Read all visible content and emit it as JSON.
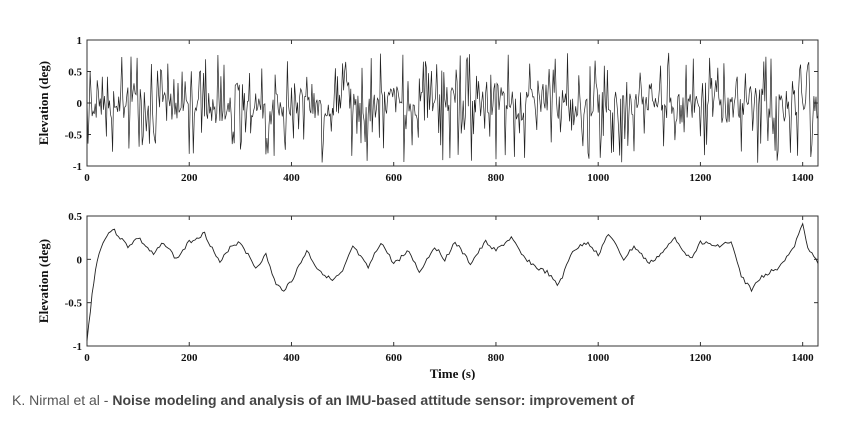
{
  "caption": {
    "authors": "K. Nirmal et al - ",
    "title": "Noise modeling and analysis of an IMU-based attitude sensor: improvement of"
  },
  "chart_data": [
    {
      "type": "line",
      "xlabel": "",
      "ylabel": "Elevation (deg)",
      "xlim": [
        0,
        1430
      ],
      "ylim": [
        -1,
        1
      ],
      "xticks": [
        "0",
        "200",
        "400",
        "600",
        "800",
        "1000",
        "1200",
        "1400"
      ],
      "yticks": [
        "1",
        "0.5",
        "0",
        "-0.5",
        "-1"
      ],
      "grid": false,
      "series": [
        {
          "color": "#222222",
          "x": [
            0,
            50,
            100,
            150,
            200,
            250,
            300,
            350,
            400,
            450,
            500,
            550,
            600,
            650,
            700,
            750,
            800,
            850,
            900,
            950,
            1000,
            1050,
            1100,
            1150,
            1200,
            1250,
            1300,
            1350,
            1400,
            1430
          ],
          "values": [
            0.1,
            -0.3,
            0.4,
            -0.6,
            0.5,
            -0.8,
            0.6,
            -0.9,
            0.4,
            -0.7,
            0.55,
            -0.85,
            0.45,
            -0.6,
            0.5,
            -0.75,
            0.6,
            -0.5,
            0.55,
            -0.8,
            0.4,
            -0.7,
            0.6,
            -0.9,
            0.5,
            -0.6,
            0.55,
            -0.8,
            0.4,
            -0.1
          ]
        }
      ]
    },
    {
      "type": "line",
      "xlabel": "Time (s)",
      "ylabel": "Elevation (deg)",
      "xlim": [
        0,
        1430
      ],
      "ylim": [
        -1,
        0.5
      ],
      "xticks": [
        "0",
        "200",
        "400",
        "600",
        "800",
        "1000",
        "1200",
        "1400"
      ],
      "yticks": [
        "0.5",
        "0",
        "-0.5",
        "-1"
      ],
      "grid": false,
      "series": [
        {
          "color": "#222222",
          "x": [
            0,
            10,
            20,
            35,
            50,
            80,
            100,
            130,
            150,
            175,
            200,
            230,
            260,
            280,
            300,
            330,
            350,
            370,
            385,
            400,
            430,
            450,
            480,
            500,
            520,
            550,
            575,
            600,
            630,
            650,
            680,
            700,
            720,
            750,
            780,
            800,
            830,
            850,
            880,
            900,
            920,
            930,
            950,
            980,
            1000,
            1020,
            1050,
            1070,
            1100,
            1130,
            1150,
            1180,
            1200,
            1230,
            1260,
            1280,
            1300,
            1320,
            1350,
            1380,
            1400,
            1410,
            1430
          ],
          "values": [
            -0.95,
            -0.4,
            0.0,
            0.25,
            0.35,
            0.15,
            0.25,
            0.05,
            0.2,
            0.0,
            0.2,
            0.3,
            -0.05,
            0.15,
            0.2,
            -0.1,
            0.05,
            -0.3,
            -0.35,
            -0.25,
            0.1,
            -0.1,
            -0.25,
            -0.15,
            0.15,
            -0.1,
            0.2,
            -0.05,
            0.1,
            -0.15,
            0.15,
            0.0,
            0.2,
            -0.05,
            0.2,
            0.1,
            0.25,
            0.05,
            -0.1,
            -0.15,
            -0.3,
            -0.2,
            0.1,
            0.2,
            0.05,
            0.3,
            0.0,
            0.15,
            -0.05,
            0.1,
            0.25,
            0.0,
            0.2,
            0.15,
            0.2,
            -0.2,
            -0.35,
            -0.2,
            -0.1,
            0.1,
            0.4,
            0.15,
            -0.05
          ]
        }
      ]
    }
  ]
}
